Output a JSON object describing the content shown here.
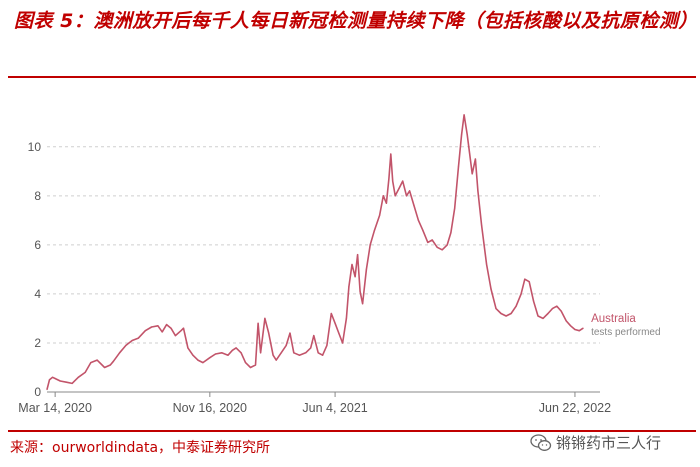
{
  "header": {
    "title": "图表 5：澳洲放开后每千人每日新冠检测量持续下降（包括核酸以及抗原检测）"
  },
  "footer": {
    "source": "来源：ourworldindata，中泰证券研究所",
    "watermark": "锵锵药市三人行"
  },
  "chart_data": {
    "type": "line",
    "title": "",
    "xlabel": "",
    "ylabel": "",
    "ylim": [
      0,
      11.5
    ],
    "yticks": [
      0,
      2,
      4,
      6,
      8,
      10
    ],
    "x_range": [
      "2020-03-01",
      "2022-08-01"
    ],
    "xticks": [
      {
        "date": "2020-03-14",
        "label": "Mar 14, 2020"
      },
      {
        "date": "2020-11-16",
        "label": "Nov 16, 2020"
      },
      {
        "date": "2021-06-04",
        "label": "Jun 4, 2021"
      },
      {
        "date": "2022-06-22",
        "label": "Jun 22, 2022"
      }
    ],
    "grid": "horizontal-dashed",
    "line_color": "#c2546a",
    "series": [
      {
        "name": "Australia",
        "sublabel": "tests performed",
        "points": [
          [
            "2020-03-01",
            0.1
          ],
          [
            "2020-03-05",
            0.5
          ],
          [
            "2020-03-10",
            0.6
          ],
          [
            "2020-03-14",
            0.55
          ],
          [
            "2020-03-22",
            0.45
          ],
          [
            "2020-04-01",
            0.4
          ],
          [
            "2020-04-10",
            0.35
          ],
          [
            "2020-04-20",
            0.6
          ],
          [
            "2020-05-01",
            0.8
          ],
          [
            "2020-05-10",
            1.2
          ],
          [
            "2020-05-20",
            1.3
          ],
          [
            "2020-06-01",
            1.0
          ],
          [
            "2020-06-10",
            1.1
          ],
          [
            "2020-06-15",
            1.25
          ],
          [
            "2020-06-25",
            1.6
          ],
          [
            "2020-07-05",
            1.9
          ],
          [
            "2020-07-15",
            2.1
          ],
          [
            "2020-07-25",
            2.2
          ],
          [
            "2020-08-05",
            2.5
          ],
          [
            "2020-08-15",
            2.65
          ],
          [
            "2020-08-25",
            2.7
          ],
          [
            "2020-09-01",
            2.45
          ],
          [
            "2020-09-08",
            2.75
          ],
          [
            "2020-09-15",
            2.6
          ],
          [
            "2020-09-22",
            2.3
          ],
          [
            "2020-10-01",
            2.5
          ],
          [
            "2020-10-05",
            2.6
          ],
          [
            "2020-10-12",
            1.8
          ],
          [
            "2020-10-20",
            1.5
          ],
          [
            "2020-10-28",
            1.3
          ],
          [
            "2020-11-05",
            1.2
          ],
          [
            "2020-11-16",
            1.4
          ],
          [
            "2020-11-25",
            1.55
          ],
          [
            "2020-12-05",
            1.6
          ],
          [
            "2020-12-15",
            1.5
          ],
          [
            "2020-12-22",
            1.7
          ],
          [
            "2020-12-28",
            1.8
          ],
          [
            "2021-01-05",
            1.6
          ],
          [
            "2021-01-12",
            1.2
          ],
          [
            "2021-01-20",
            1.0
          ],
          [
            "2021-01-28",
            1.1
          ],
          [
            "2021-02-01",
            2.8
          ],
          [
            "2021-02-05",
            1.6
          ],
          [
            "2021-02-12",
            3.0
          ],
          [
            "2021-02-18",
            2.4
          ],
          [
            "2021-02-25",
            1.5
          ],
          [
            "2021-03-02",
            1.3
          ],
          [
            "2021-03-10",
            1.6
          ],
          [
            "2021-03-18",
            1.9
          ],
          [
            "2021-03-24",
            2.4
          ],
          [
            "2021-03-30",
            1.6
          ],
          [
            "2021-04-08",
            1.5
          ],
          [
            "2021-04-18",
            1.6
          ],
          [
            "2021-04-26",
            1.8
          ],
          [
            "2021-05-01",
            2.3
          ],
          [
            "2021-05-08",
            1.6
          ],
          [
            "2021-05-15",
            1.5
          ],
          [
            "2021-05-22",
            1.9
          ],
          [
            "2021-05-29",
            3.2
          ],
          [
            "2021-06-04",
            2.8
          ],
          [
            "2021-06-10",
            2.4
          ],
          [
            "2021-06-16",
            2.0
          ],
          [
            "2021-06-22",
            3.0
          ],
          [
            "2021-06-26",
            4.3
          ],
          [
            "2021-07-01",
            5.2
          ],
          [
            "2021-07-06",
            4.7
          ],
          [
            "2021-07-10",
            5.6
          ],
          [
            "2021-07-14",
            4.1
          ],
          [
            "2021-07-18",
            3.6
          ],
          [
            "2021-07-24",
            5.0
          ],
          [
            "2021-07-30",
            6.0
          ],
          [
            "2021-08-06",
            6.6
          ],
          [
            "2021-08-14",
            7.2
          ],
          [
            "2021-08-20",
            8.0
          ],
          [
            "2021-08-25",
            7.7
          ],
          [
            "2021-08-29",
            8.7
          ],
          [
            "2021-09-01",
            9.7
          ],
          [
            "2021-09-04",
            8.6
          ],
          [
            "2021-09-08",
            8.0
          ],
          [
            "2021-09-14",
            8.3
          ],
          [
            "2021-09-20",
            8.6
          ],
          [
            "2021-09-26",
            8.0
          ],
          [
            "2021-10-01",
            8.2
          ],
          [
            "2021-10-08",
            7.6
          ],
          [
            "2021-10-15",
            7.0
          ],
          [
            "2021-10-22",
            6.6
          ],
          [
            "2021-10-30",
            6.1
          ],
          [
            "2021-11-06",
            6.2
          ],
          [
            "2021-11-14",
            5.9
          ],
          [
            "2021-11-22",
            5.8
          ],
          [
            "2021-11-30",
            6.0
          ],
          [
            "2021-12-06",
            6.5
          ],
          [
            "2021-12-12",
            7.5
          ],
          [
            "2021-12-18",
            9.2
          ],
          [
            "2021-12-23",
            10.5
          ],
          [
            "2021-12-27",
            11.3
          ],
          [
            "2022-01-01",
            10.5
          ],
          [
            "2022-01-05",
            9.7
          ],
          [
            "2022-01-09",
            8.9
          ],
          [
            "2022-01-14",
            9.5
          ],
          [
            "2022-01-18",
            8.2
          ],
          [
            "2022-01-24",
            6.8
          ],
          [
            "2022-02-01",
            5.2
          ],
          [
            "2022-02-08",
            4.2
          ],
          [
            "2022-02-16",
            3.4
          ],
          [
            "2022-02-24",
            3.2
          ],
          [
            "2022-03-04",
            3.1
          ],
          [
            "2022-03-12",
            3.2
          ],
          [
            "2022-03-20",
            3.5
          ],
          [
            "2022-03-28",
            4.0
          ],
          [
            "2022-04-03",
            4.6
          ],
          [
            "2022-04-10",
            4.5
          ],
          [
            "2022-04-17",
            3.7
          ],
          [
            "2022-04-24",
            3.1
          ],
          [
            "2022-05-02",
            3.0
          ],
          [
            "2022-05-10",
            3.2
          ],
          [
            "2022-05-17",
            3.4
          ],
          [
            "2022-05-24",
            3.5
          ],
          [
            "2022-05-31",
            3.3
          ],
          [
            "2022-06-08",
            2.9
          ],
          [
            "2022-06-15",
            2.7
          ],
          [
            "2022-06-22",
            2.55
          ],
          [
            "2022-06-29",
            2.5
          ],
          [
            "2022-07-05",
            2.6
          ]
        ]
      }
    ]
  }
}
